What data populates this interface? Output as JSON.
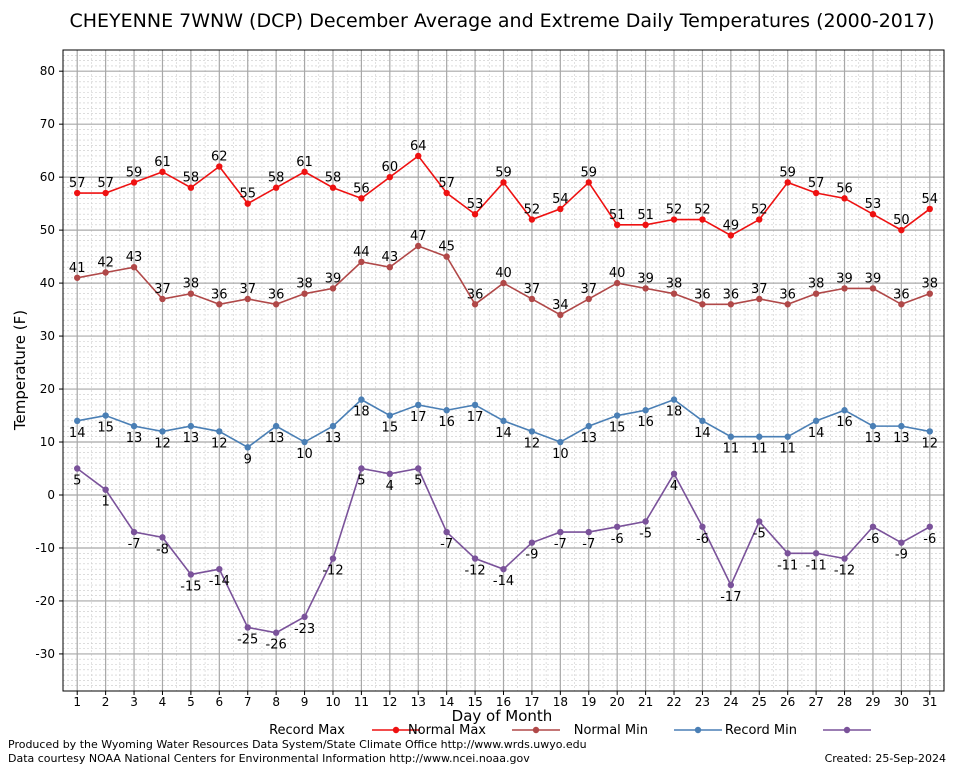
{
  "chart_data": {
    "type": "line",
    "title": "CHEYENNE 7WNW (DCP) December Average and Extreme Daily Temperatures (2000-2017)",
    "xlabel": "Day of Month",
    "ylabel": "Temperature (F)",
    "x": [
      1,
      2,
      3,
      4,
      5,
      6,
      7,
      8,
      9,
      10,
      11,
      12,
      13,
      14,
      15,
      16,
      17,
      18,
      19,
      20,
      21,
      22,
      23,
      24,
      25,
      26,
      27,
      28,
      29,
      30,
      31
    ],
    "xlim": [
      0.5,
      31.5
    ],
    "ylim": [
      -37,
      84
    ],
    "yticks": [
      -30,
      -20,
      -10,
      0,
      10,
      20,
      30,
      40,
      50,
      60,
      70,
      80
    ],
    "grid": true,
    "legend_position": "bottom",
    "series": [
      {
        "name": "Record Max",
        "color": "#ee1111",
        "values": [
          57,
          57,
          59,
          61,
          58,
          62,
          55,
          58,
          61,
          58,
          56,
          60,
          64,
          57,
          53,
          59,
          52,
          54,
          59,
          51,
          51,
          52,
          52,
          49,
          52,
          59,
          57,
          56,
          53,
          50,
          54
        ]
      },
      {
        "name": "Normal Max",
        "color": "#b04848",
        "values": [
          41,
          42,
          43,
          37,
          38,
          36,
          37,
          36,
          38,
          39,
          44,
          43,
          47,
          45,
          36,
          40,
          37,
          34,
          37,
          40,
          39,
          38,
          36,
          36,
          37,
          36,
          38,
          39,
          39,
          36,
          38
        ]
      },
      {
        "name": "Normal Min",
        "color": "#4a7fb5",
        "values": [
          14,
          15,
          13,
          12,
          13,
          12,
          9,
          13,
          10,
          13,
          18,
          15,
          17,
          16,
          17,
          14,
          12,
          10,
          13,
          15,
          16,
          18,
          14,
          11,
          11,
          11,
          14,
          16,
          13,
          13,
          12
        ]
      },
      {
        "name": "Record Min",
        "color": "#7a529a",
        "values": [
          5,
          1,
          -7,
          -8,
          -15,
          -14,
          -25,
          -26,
          -23,
          -12,
          5,
          4,
          5,
          -7,
          -12,
          -14,
          -9,
          -7,
          -7,
          -6,
          -5,
          4,
          -6,
          -17,
          -5,
          -11,
          -11,
          -12,
          -6,
          -9,
          -6
        ]
      }
    ]
  },
  "footer": {
    "line1": "Produced by the Wyoming Water Resources Data System/State Climate Office http://www.wrds.uwyo.edu",
    "line2": "Data courtesy NOAA National Centers for Environmental Information http://www.ncei.noaa.gov",
    "created": "Created:  25-Sep-2024"
  }
}
